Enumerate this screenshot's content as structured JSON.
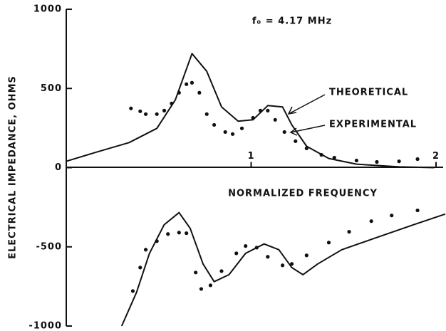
{
  "chart_data": {
    "type": "line",
    "title": "f₀ = 4.17 MHz",
    "x_label": "NORMALIZED FREQUENCY",
    "y_label": "ELECTRICAL IMPEDANCE, OHMS",
    "annotations": [
      "THEORETICAL",
      "EXPERIMENTAL"
    ],
    "xlim": [
      0,
      2
    ],
    "ylim": [
      -1000,
      1000
    ],
    "xticks": [
      1,
      2
    ],
    "yticks": [
      -1000,
      -500,
      0,
      500,
      1000
    ],
    "series": [
      {
        "marker": "none",
        "color": "#111111",
        "x": [
          0,
          0.18,
          0.34,
          0.49,
          0.59,
          0.68,
          0.76,
          0.84,
          0.93,
          1.01,
          1.09,
          1.17,
          1.22,
          1.3,
          1.42,
          1.57,
          1.8,
          1.99
        ],
        "values": [
          40,
          104,
          158,
          248,
          428,
          720,
          608,
          383,
          293,
          302,
          392,
          383,
          270,
          135,
          58,
          22,
          5,
          0
        ]
      },
      {
        "marker": "dot",
        "color": "#111111",
        "x": [
          0.35,
          0.4,
          0.43,
          0.49,
          0.53,
          0.57,
          0.61,
          0.65,
          0.68,
          0.72,
          0.76,
          0.8,
          0.86,
          0.9,
          0.95,
          1.01,
          1.05,
          1.09,
          1.13,
          1.18,
          1.24,
          1.3,
          1.38,
          1.45,
          1.57,
          1.68,
          1.8,
          1.9
        ],
        "values": [
          374,
          356,
          338,
          338,
          360,
          405,
          473,
          527,
          536,
          473,
          338,
          270,
          225,
          212,
          248,
          315,
          360,
          360,
          302,
          225,
          167,
          122,
          81,
          63,
          45,
          36,
          40,
          54
        ]
      },
      {
        "marker": "none",
        "color": "#111111",
        "x": [
          0.3,
          0.38,
          0.45,
          0.53,
          0.61,
          0.67,
          0.74,
          0.8,
          0.88,
          0.97,
          1.07,
          1.15,
          1.22,
          1.28,
          1.36,
          1.49,
          1.68,
          1.88,
          2.05
        ],
        "values": [
          -1000,
          -788,
          -541,
          -360,
          -284,
          -383,
          -608,
          -720,
          -676,
          -541,
          -482,
          -518,
          -631,
          -676,
          -608,
          -518,
          -441,
          -360,
          -293
        ]
      },
      {
        "marker": "dot",
        "color": "#111111",
        "x": [
          0.36,
          0.4,
          0.43,
          0.49,
          0.55,
          0.61,
          0.65,
          0.7,
          0.73,
          0.78,
          0.84,
          0.92,
          0.97,
          1.03,
          1.09,
          1.17,
          1.22,
          1.3,
          1.42,
          1.53,
          1.65,
          1.76,
          1.9
        ],
        "values": [
          -779,
          -631,
          -518,
          -464,
          -419,
          -410,
          -414,
          -662,
          -766,
          -743,
          -653,
          -541,
          -495,
          -505,
          -563,
          -617,
          -608,
          -554,
          -473,
          -405,
          -338,
          -302,
          -270
        ]
      }
    ]
  }
}
